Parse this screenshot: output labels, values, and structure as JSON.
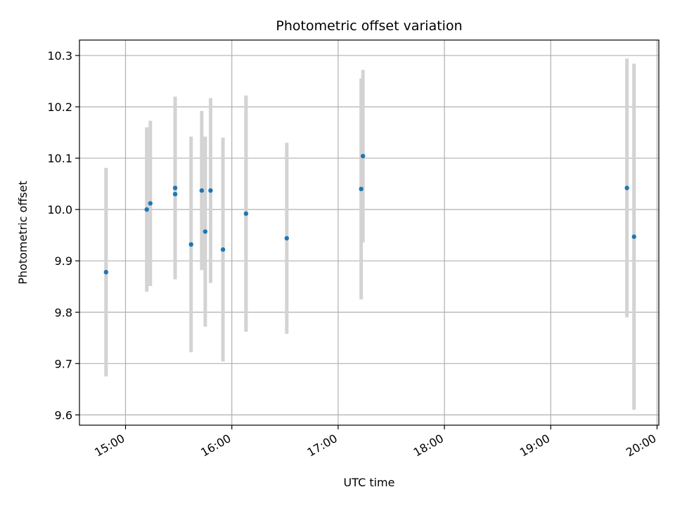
{
  "chart_data": {
    "type": "scatter",
    "title": "Photometric offset variation",
    "xlabel": "UTC time",
    "ylabel": "Photometric offset",
    "x_ticks": [
      "15:00",
      "16:00",
      "17:00",
      "18:00",
      "19:00",
      "20:00"
    ],
    "y_ticks": [
      "9.6",
      "9.7",
      "9.8",
      "9.9",
      "10.0",
      "10.1",
      "10.2",
      "10.3"
    ],
    "xlim": [
      "14:34",
      "20:01"
    ],
    "ylim": [
      9.58,
      10.33
    ],
    "grid": true,
    "colors": {
      "marker": "#1f77b4",
      "errorbar": "#d3d3d3",
      "grid": "#b0b0b0"
    },
    "points": [
      {
        "x": "14:49",
        "y": 9.878,
        "yerr": 0.203
      },
      {
        "x": "15:12",
        "y": 10.0,
        "yerr": 0.16
      },
      {
        "x": "15:14",
        "y": 10.012,
        "yerr": 0.161
      },
      {
        "x": "15:28",
        "y": 10.042,
        "yerr": 0.178
      },
      {
        "x": "15:28",
        "y": 10.03,
        "yerr": 0.165
      },
      {
        "x": "15:37",
        "y": 9.932,
        "yerr": 0.21
      },
      {
        "x": "15:43",
        "y": 10.037,
        "yerr": 0.155
      },
      {
        "x": "15:45",
        "y": 9.957,
        "yerr": 0.185
      },
      {
        "x": "15:48",
        "y": 10.037,
        "yerr": 0.18
      },
      {
        "x": "15:55",
        "y": 9.922,
        "yerr": 0.218
      },
      {
        "x": "16:08",
        "y": 9.992,
        "yerr": 0.23
      },
      {
        "x": "16:31",
        "y": 9.944,
        "yerr": 0.186
      },
      {
        "x": "17:13",
        "y": 10.04,
        "yerr": 0.215
      },
      {
        "x": "17:14",
        "y": 10.104,
        "yerr": 0.168
      },
      {
        "x": "19:43",
        "y": 10.042,
        "yerr": 0.252
      },
      {
        "x": "19:47",
        "y": 9.947,
        "yerr": 0.337
      }
    ]
  }
}
